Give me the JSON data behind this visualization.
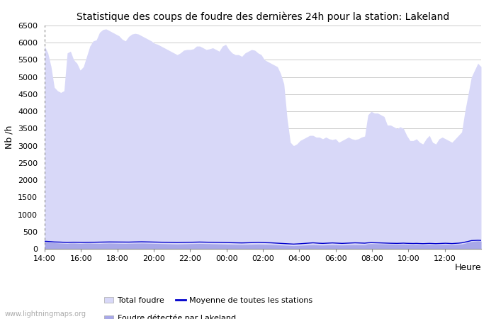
{
  "title": "Statistique des coups de foudre des dernières 24h pour la station: Lakeland",
  "ylabel": "Nb /h",
  "xlabel_right": "Heure",
  "watermark": "www.lightningmaps.org",
  "ylim": [
    0,
    6500
  ],
  "yticks": [
    0,
    500,
    1000,
    1500,
    2000,
    2500,
    3000,
    3500,
    4000,
    4500,
    5000,
    5500,
    6000,
    6500
  ],
  "xtick_labels": [
    "14:00",
    "16:00",
    "18:00",
    "20:00",
    "22:00",
    "00:00",
    "02:00",
    "04:00",
    "06:00",
    "08:00",
    "10:00",
    "12:00"
  ],
  "bg_color": "#ffffff",
  "plot_bg_color": "#ffffff",
  "grid_color": "#cccccc",
  "total_foudre_color": "#d8d8f8",
  "lakeland_color": "#a8a8e8",
  "mean_line_color": "#0000cc",
  "legend_labels": [
    "Total foudre",
    "Moyenne de toutes les stations",
    "Foudre détectée par Lakeland"
  ],
  "x_hours": [
    0.0,
    0.178,
    0.356,
    0.533,
    0.711,
    0.889,
    1.067,
    1.244,
    1.422,
    1.6,
    1.778,
    1.956,
    2.133,
    2.311,
    2.489,
    2.667,
    2.844,
    3.022,
    3.2,
    3.378,
    3.556,
    3.733,
    3.911,
    4.089,
    4.267,
    4.444,
    4.622,
    4.8,
    4.978,
    5.156,
    5.333,
    5.511,
    5.689,
    5.867,
    6.044,
    6.222,
    6.4,
    6.578,
    6.756,
    6.933,
    7.111,
    7.289,
    7.467,
    7.644,
    7.822,
    8.0,
    8.178,
    8.356,
    8.533,
    8.711,
    8.889,
    9.067,
    9.244,
    9.422,
    9.6,
    9.778,
    9.956,
    10.133,
    10.311,
    10.489,
    10.667,
    10.844,
    11.022,
    11.2,
    11.378,
    11.556,
    11.733,
    11.911,
    12.089,
    12.267,
    12.444,
    12.622,
    12.8,
    12.978,
    13.156,
    13.333,
    13.511,
    13.689,
    13.867,
    14.044,
    14.222,
    14.4,
    14.578,
    14.756,
    14.933,
    15.111,
    15.289,
    15.467,
    15.644,
    15.822,
    16.0,
    16.178,
    16.356,
    16.533,
    16.711,
    16.889,
    17.067,
    17.244,
    17.422,
    17.6,
    17.778,
    17.956,
    18.133,
    18.311,
    18.489,
    18.667,
    18.844,
    19.022,
    19.2,
    19.378,
    19.556,
    19.733,
    19.911,
    20.089,
    20.267,
    20.444,
    20.622,
    20.8,
    20.978,
    21.156,
    21.333,
    21.511,
    21.689,
    21.867,
    22.044,
    22.222,
    22.4,
    22.578,
    22.756,
    22.933,
    23.111,
    23.289,
    23.467,
    23.644,
    23.822,
    24.0
  ],
  "total_foudre_y": [
    5900,
    5700,
    5300,
    4700,
    4600,
    4550,
    4600,
    5700,
    5750,
    5500,
    5400,
    5200,
    5300,
    5600,
    5900,
    6050,
    6080,
    6300,
    6380,
    6400,
    6350,
    6300,
    6250,
    6200,
    6100,
    6050,
    6180,
    6250,
    6270,
    6250,
    6200,
    6150,
    6100,
    6050,
    5980,
    5950,
    5900,
    5850,
    5800,
    5750,
    5700,
    5650,
    5700,
    5780,
    5800,
    5800,
    5820,
    5900,
    5900,
    5850,
    5800,
    5820,
    5850,
    5800,
    5750,
    5900,
    5950,
    5800,
    5700,
    5650,
    5650,
    5600,
    5700,
    5750,
    5800,
    5780,
    5700,
    5650,
    5500,
    5450,
    5400,
    5350,
    5300,
    5100,
    4800,
    3800,
    3100,
    3000,
    3050,
    3150,
    3200,
    3250,
    3300,
    3300,
    3250,
    3250,
    3200,
    3250,
    3200,
    3180,
    3200,
    3100,
    3150,
    3200,
    3250,
    3200,
    3180,
    3200,
    3250,
    3280,
    3900,
    4000,
    3950,
    3950,
    3900,
    3850,
    3600,
    3600,
    3550,
    3500,
    3550,
    3500,
    3300,
    3150,
    3150,
    3200,
    3100,
    3050,
    3200,
    3300,
    3100,
    3050,
    3200,
    3250,
    3200,
    3150,
    3100,
    3200,
    3300,
    3400,
    4000,
    4500,
    5000,
    5200,
    5400,
    5300
  ],
  "lakeland_y": [
    200,
    195,
    185,
    175,
    170,
    165,
    160,
    155,
    165,
    165,
    160,
    155,
    160,
    165,
    165,
    160,
    158,
    155,
    160,
    162,
    165,
    163,
    160,
    158,
    156,
    155,
    158,
    160,
    162,
    163,
    165,
    163,
    160,
    158,
    155,
    153,
    150,
    148,
    145,
    143,
    140,
    138,
    140,
    143,
    145,
    148,
    150,
    153,
    155,
    153,
    150,
    148,
    145,
    143,
    140,
    138,
    135,
    133,
    130,
    128,
    125,
    123,
    125,
    128,
    130,
    133,
    135,
    133,
    130,
    128,
    125,
    120,
    115,
    110,
    105,
    100,
    95,
    90,
    95,
    100,
    105,
    110,
    115,
    120,
    115,
    110,
    108,
    112,
    115,
    118,
    115,
    112,
    110,
    112,
    115,
    118,
    120,
    118,
    115,
    113,
    145,
    150,
    148,
    145,
    143,
    140,
    138,
    135,
    133,
    130,
    133,
    135,
    130,
    128,
    125,
    128,
    123,
    120,
    122,
    125,
    122,
    120,
    122,
    125,
    128,
    125,
    122,
    125,
    130,
    140,
    160,
    185,
    210,
    220,
    230,
    220
  ],
  "mean_y": [
    220,
    215,
    208,
    200,
    198,
    195,
    190,
    185,
    188,
    192,
    190,
    187,
    186,
    188,
    191,
    193,
    195,
    197,
    199,
    201,
    200,
    199,
    197,
    196,
    194,
    193,
    196,
    199,
    201,
    203,
    205,
    203,
    200,
    198,
    196,
    194,
    192,
    190,
    188,
    186,
    184,
    182,
    184,
    186,
    188,
    190,
    192,
    195,
    197,
    195,
    193,
    191,
    189,
    187,
    185,
    183,
    182,
    180,
    178,
    176,
    174,
    172,
    175,
    178,
    180,
    183,
    185,
    183,
    180,
    178,
    175,
    170,
    165,
    160,
    155,
    148,
    142,
    138,
    142,
    148,
    155,
    162,
    168,
    175,
    168,
    162,
    158,
    162,
    168,
    172,
    168,
    162,
    158,
    162,
    168,
    172,
    175,
    172,
    168,
    165,
    175,
    180,
    178,
    175,
    172,
    168,
    165,
    162,
    160,
    158,
    162,
    165,
    160,
    158,
    155,
    158,
    153,
    150,
    153,
    158,
    153,
    150,
    153,
    158,
    162,
    158,
    153,
    158,
    165,
    175,
    195,
    215,
    240,
    245,
    248,
    245
  ]
}
